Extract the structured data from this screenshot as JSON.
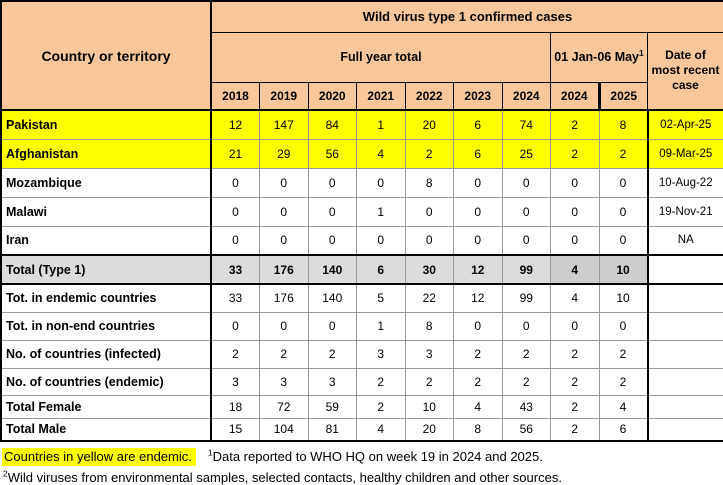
{
  "title": "Wild virus type 1 confirmed cases",
  "header": {
    "country_col": "Country or territory",
    "group_full_year": "Full year total",
    "group_jan_may": "01 Jan-06 May",
    "group_jan_may_sup": "1",
    "date_col": "Date of most recent case",
    "year_cols": [
      "2018",
      "2019",
      "2020",
      "2021",
      "2022",
      "2023",
      "2024",
      "2024",
      "2025"
    ]
  },
  "colors": {
    "peach": "#F9C79A",
    "yellow": "#FFFF00",
    "totalbg": "#DCDCDC",
    "totaljm": "#CDCDCD",
    "grid": "#999999",
    "border": "#000000"
  },
  "rows": [
    {
      "label": "Pakistan",
      "style": "endemic",
      "values": [
        "12",
        "147",
        "84",
        "1",
        "20",
        "6",
        "74",
        "2",
        "8"
      ],
      "date": "02-Apr-25"
    },
    {
      "label": "Afghanistan",
      "style": "endemic",
      "values": [
        "21",
        "29",
        "56",
        "4",
        "2",
        "6",
        "25",
        "2",
        "2"
      ],
      "date": "09-Mar-25"
    },
    {
      "label": "Mozambique",
      "style": "normal",
      "values": [
        "0",
        "0",
        "0",
        "0",
        "8",
        "0",
        "0",
        "0",
        "0"
      ],
      "date": "10-Aug-22"
    },
    {
      "label": "Malawi",
      "style": "normal",
      "values": [
        "0",
        "0",
        "0",
        "1",
        "0",
        "0",
        "0",
        "0",
        "0"
      ],
      "date": "19-Nov-21"
    },
    {
      "label": "Iran",
      "style": "normal",
      "values": [
        "0",
        "0",
        "0",
        "0",
        "0",
        "0",
        "0",
        "0",
        "0"
      ],
      "date": "NA"
    },
    {
      "label": "Total (Type 1)",
      "style": "total",
      "values": [
        "33",
        "176",
        "140",
        "6",
        "30",
        "12",
        "99",
        "4",
        "10"
      ],
      "date": ""
    },
    {
      "label": "Tot. in endemic countries",
      "style": "normal",
      "values": [
        "33",
        "176",
        "140",
        "5",
        "22",
        "12",
        "99",
        "4",
        "10"
      ],
      "date": ""
    },
    {
      "label": "Tot. in non-end countries",
      "style": "normal",
      "values": [
        "0",
        "0",
        "0",
        "1",
        "8",
        "0",
        "0",
        "0",
        "0"
      ],
      "date": ""
    },
    {
      "label": "No. of countries (infected)",
      "style": "normal",
      "values": [
        "2",
        "2",
        "2",
        "3",
        "3",
        "2",
        "2",
        "2",
        "2"
      ],
      "date": ""
    },
    {
      "label": "No. of countries (endemic)",
      "style": "normal",
      "values": [
        "3",
        "3",
        "3",
        "2",
        "2",
        "2",
        "2",
        "2",
        "2"
      ],
      "date": ""
    },
    {
      "label": "Total Female",
      "style": "normal",
      "values": [
        "18",
        "72",
        "59",
        "2",
        "10",
        "4",
        "43",
        "2",
        "4"
      ],
      "date": ""
    },
    {
      "label": "Total Male",
      "style": "normal",
      "values": [
        "15",
        "104",
        "81",
        "4",
        "20",
        "8",
        "56",
        "2",
        "6"
      ],
      "date": ""
    }
  ],
  "footer": {
    "highlight": "Countries in yellow are endemic.",
    "note1_sup": "1",
    "note1": "Data reported to WHO HQ on week 19 in 2024 and 2025.",
    "note2_sup": "2",
    "note2": "Wild viruses from environmental samples, selected contacts, healthy children and other sources."
  }
}
